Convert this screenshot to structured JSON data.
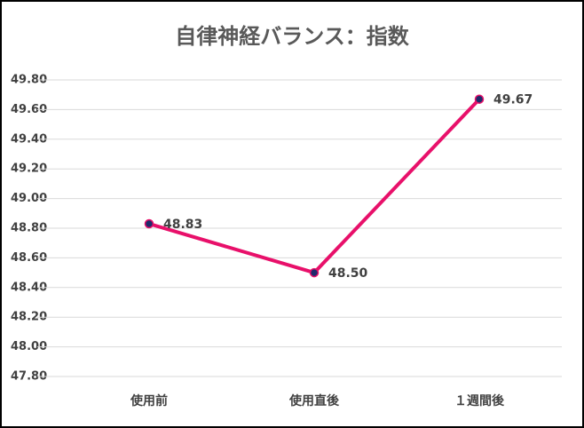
{
  "chart_data": {
    "type": "line",
    "title": "自律神経バランス：指数",
    "categories": [
      "使用前",
      "使用直後",
      "１週間後"
    ],
    "series": [
      {
        "name": "指数",
        "color": "#e8106a",
        "values": [
          48.83,
          48.5,
          49.67
        ],
        "value_labels": [
          "48.83",
          "48.50",
          "49.67"
        ]
      }
    ],
    "ylim": [
      47.8,
      49.8
    ],
    "yticks": [
      {
        "value": 47.8,
        "label": "47.80"
      },
      {
        "value": 48.0,
        "label": "48.00"
      },
      {
        "value": 48.2,
        "label": "48.20"
      },
      {
        "value": 48.4,
        "label": "48.40"
      },
      {
        "value": 48.6,
        "label": "48.60"
      },
      {
        "value": 48.8,
        "label": "48.80"
      },
      {
        "value": 49.0,
        "label": "49.00"
      },
      {
        "value": 49.2,
        "label": "49.20"
      },
      {
        "value": 49.4,
        "label": "49.40"
      },
      {
        "value": 49.6,
        "label": "49.60"
      },
      {
        "value": 49.8,
        "label": "49.80"
      }
    ],
    "grid": true
  }
}
